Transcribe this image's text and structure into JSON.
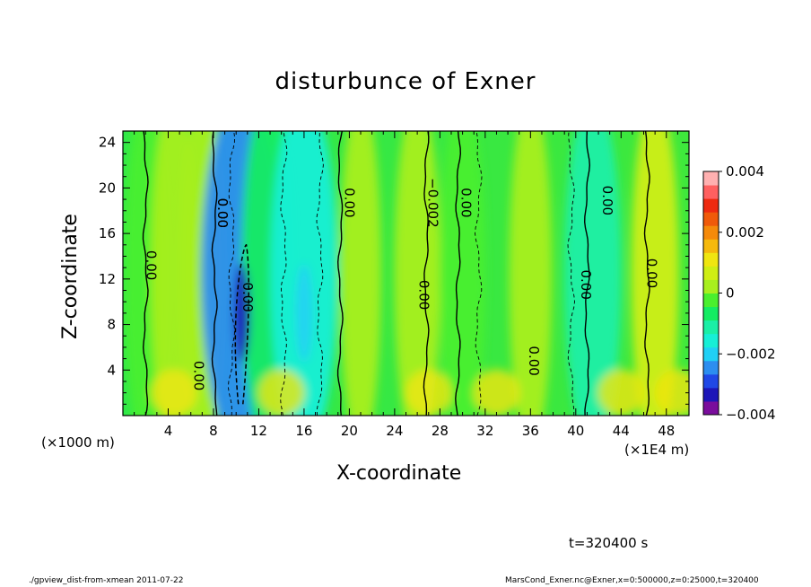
{
  "chart_data": {
    "type": "heatmap",
    "title": "disturbunce of Exner",
    "xlabel": "X-coordinate",
    "ylabel": "Z-coordinate",
    "x_unit_label": "(×1E4 m)",
    "z_unit_label": "(×1000 m)",
    "xlim": [
      0,
      50
    ],
    "ylim": [
      0,
      25
    ],
    "x_ticks": [
      4,
      8,
      12,
      16,
      20,
      24,
      28,
      32,
      36,
      40,
      44,
      48
    ],
    "y_ticks": [
      4,
      8,
      12,
      16,
      20,
      24
    ],
    "colorbar": {
      "min": -0.004,
      "max": 0.004,
      "labels": [
        "0.004",
        "0.002",
        "0",
        "−0.002",
        "−0.004"
      ],
      "label_values": [
        0.004,
        0.002,
        0,
        -0.002,
        -0.004
      ],
      "colors": [
        "#7a0d9c",
        "#1d16b8",
        "#2048e6",
        "#2c8ef0",
        "#20d0f5",
        "#17efd6",
        "#1aefa6",
        "#14ec62",
        "#4aef2e",
        "#a8ef1e",
        "#cfee14",
        "#f0e610",
        "#f5b90c",
        "#f58a0a",
        "#f05a0a",
        "#ee2a10",
        "#ff6060",
        "#ffb0b0"
      ]
    },
    "contour_labels": [
      "0.00",
      "0.00",
      "0.00",
      "0.00",
      "0.00",
      "−0.002",
      "0.00",
      "0.00",
      "0.00",
      "0.00",
      "0.00",
      "0.00",
      "0.00"
    ],
    "columns": [
      {
        "x": 2,
        "value": -0.0003
      },
      {
        "x": 4.5,
        "value": 0.0004
      },
      {
        "x": 7,
        "value": 0.0003
      },
      {
        "x": 10.5,
        "value": -0.0026
      },
      {
        "x": 12.8,
        "value": -0.0008
      },
      {
        "x": 16,
        "value": -0.0017
      },
      {
        "x": 21,
        "value": 0.0001
      },
      {
        "x": 26,
        "value": 0.0004
      },
      {
        "x": 30,
        "value": -0.0004
      },
      {
        "x": 36,
        "value": 0.0002
      },
      {
        "x": 41.5,
        "value": -0.0011
      },
      {
        "x": 47,
        "value": 0.0005
      }
    ]
  },
  "footer": {
    "time": "t=320400 s",
    "left": "./gpview_dist-from-xmean   2011-07-22",
    "right": "MarsCond_Exner.nc@Exner,x=0:500000,z=0:25000,t=320400"
  }
}
